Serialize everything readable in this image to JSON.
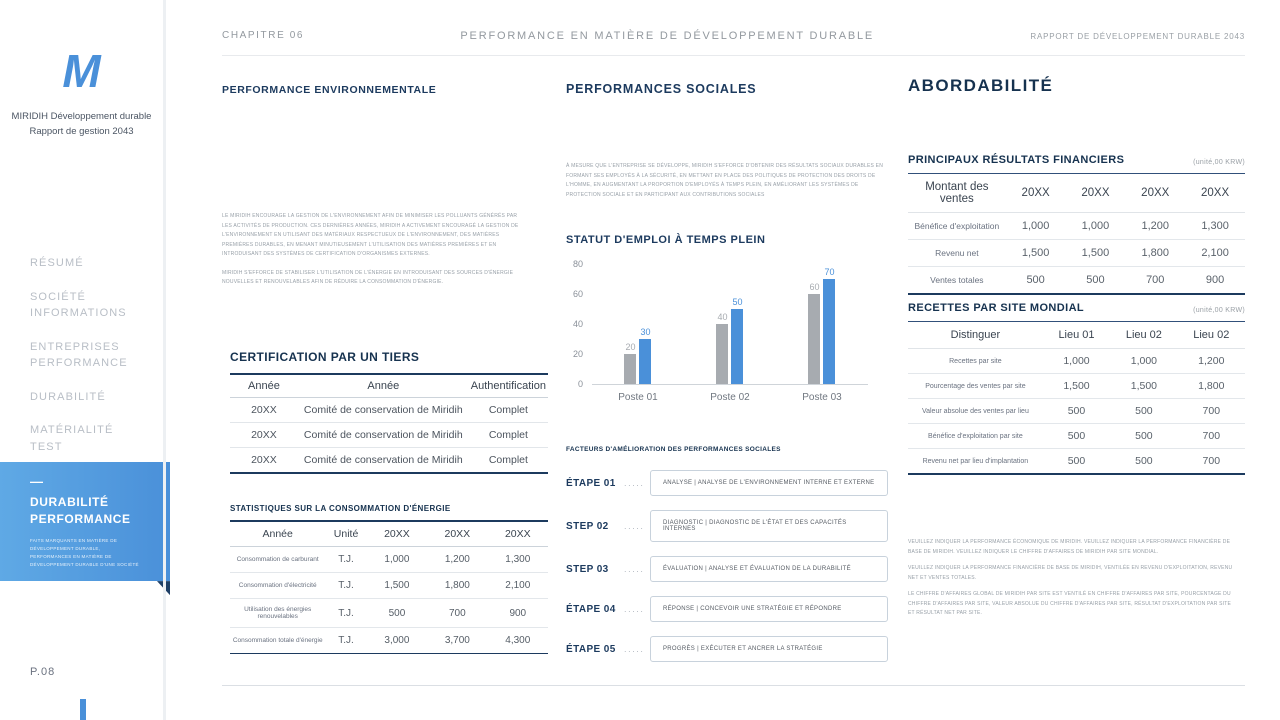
{
  "colors": {
    "accent": "#4a90d9",
    "navy": "#1c3a5e",
    "gray_bar": "#a7abb0"
  },
  "sidebar": {
    "logo_letter": "M",
    "brand_line1": "MIRIDIH Développement durable",
    "brand_line2": "Rapport de gestion 2043",
    "nav_items": [
      "RÉSUMÉ",
      "SOCIÉTÉ INFORMATIONS",
      "ENTREPRISES PERFORMANCE",
      "DURABILITÉ",
      "MATÉRIALITÉ TEST"
    ],
    "active": {
      "dash": "—",
      "label": "DURABILITÉ PERFORMANCE",
      "subtext": "FAITS MARQUANTS EN MATIÈRE DE DÉVELOPPEMENT DURABLE, PERFORMANCES EN MATIÈRE DE DÉVELOPPEMENT DURABLE D'UNE SOCIÉTÉ"
    },
    "page_number": "P.08"
  },
  "header": {
    "chapter": "CHAPITRE 06",
    "title": "PERFORMANCE EN MATIÈRE DE DÉVELOPPEMENT DURABLE",
    "report": "RAPPORT DE DÉVELOPPEMENT DURABLE 2043"
  },
  "environment": {
    "heading": "PERFORMANCE ENVIRONNEMENTALE",
    "paragraphs": [
      "LE MIRIDIH ENCOURAGE LA GESTION DE L'ENVIRONNEMENT AFIN DE MINIMISER LES POLLUANTS GÉNÉRÉS PAR LES ACTIVITÉS DE PRODUCTION. CES DERNIÈRES ANNÉES, MIRIDIH A ACTIVEMENT ENCOURAGÉ LA GESTION DE L'ENVIRONNEMENT EN UTILISANT DES MATÉRIAUX RESPECTUEUX DE L'ENVIRONNEMENT, DES MATIÈRES PREMIÈRES DURABLES, EN MENANT MINUTIEUSEMENT L'UTILISATION DES MATIÈRES PREMIÈRES ET EN INTRODUISANT DES SYSTÈMES DE CERTIFICATION D'ORGANISMES EXTERNES.",
      "MIRIDIH S'EFFORCE DE STABILISER L'UTILISATION DE L'ÉNERGIE EN INTRODUISANT DES SOURCES D'ÉNERGIE NOUVELLES ET RENOUVELABLES AFIN DE RÉDUIRE LA CONSOMMATION D'ÉNERGIE."
    ],
    "certification": {
      "heading": "CERTIFICATION PAR UN TIERS",
      "headers": [
        "Année",
        "Année",
        "Authentification"
      ],
      "rows": [
        [
          "20XX",
          "Comité de conservation de Miridih",
          "Complet"
        ],
        [
          "20XX",
          "Comité de conservation de Miridih",
          "Complet"
        ],
        [
          "20XX",
          "Comité de conservation de Miridih",
          "Complet"
        ]
      ]
    },
    "energy": {
      "heading": "STATISTIQUES SUR LA CONSOMMATION D'ÉNERGIE",
      "headers": [
        "Année",
        "Unité",
        "20XX",
        "20XX",
        "20XX"
      ],
      "rows": [
        [
          "Consommation de carburant",
          "T.J.",
          "1,000",
          "1,200",
          "1,300"
        ],
        [
          "Consommation d'électricité",
          "T.J.",
          "1,500",
          "1,800",
          "2,100"
        ],
        [
          "Utilisation des énergies renouvelables",
          "T.J.",
          "500",
          "700",
          "900"
        ],
        [
          "Consommation totale d'énergie",
          "T.J.",
          "3,000",
          "3,700",
          "4,300"
        ]
      ]
    }
  },
  "social": {
    "heading": "PERFORMANCES SOCIALES",
    "paragraph": "À MESURE QUE L'ENTREPRISE SE DÉVELOPPE, MIRIDIH S'EFFORCE D'OBTENIR DES RÉSULTATS SOCIAUX DURABLES EN FORMANT SES EMPLOYÉS À LA SÉCURITÉ, EN METTANT EN PLACE DES POLITIQUES DE PROTECTION DES DROITS DE L'HOMME, EN AUGMENTANT LA PROPORTION D'EMPLOYÉS À TEMPS PLEIN, EN AMÉLIORANT LES SYSTÈMES DE PROTECTION SOCIALE ET EN PARTICIPANT AUX CONTRIBUTIONS SOCIALES",
    "chart_heading": "STATUT D'EMPLOI À TEMPS PLEIN",
    "factors_heading": "FACTEURS D'AMÉLIORATION DES PERFORMANCES SOCIALES",
    "steps": [
      {
        "label": "ÉTAPE 01",
        "dots": ".....",
        "text": "ANALYSE | ANALYSE DE L'ENVIRONNEMENT INTERNE ET EXTERNE"
      },
      {
        "label": "STEP 02",
        "dots": ".....",
        "text": "DIAGNOSTIC | DIAGNOSTIC DE L'ÉTAT ET DES CAPACITÉS INTERNES"
      },
      {
        "label": "STEP 03",
        "dots": ".....",
        "text": "ÉVALUATION | ANALYSE ET ÉVALUATION DE LA DURABILITÉ"
      },
      {
        "label": "ÉTAPE 04",
        "dots": ".....",
        "text": "RÉPONSE | CONCEVOIR UNE STRATÉGIE ET RÉPONDRE"
      },
      {
        "label": "ÉTAPE 05",
        "dots": ".....",
        "text": "PROGRÈS | EXÉCUTER ET ANCRER LA STRATÉGIE"
      }
    ]
  },
  "chart_data": {
    "type": "bar",
    "title": "STATUT D'EMPLOI À TEMPS PLEIN",
    "categories": [
      "Poste 01",
      "Poste 02",
      "Poste 03"
    ],
    "series": [
      {
        "name": "serie-grise",
        "color": "#a7abb0",
        "values": [
          20,
          40,
          60
        ]
      },
      {
        "name": "serie-bleue",
        "color": "#4a90d9",
        "values": [
          30,
          50,
          70
        ]
      }
    ],
    "ylim": [
      0,
      80
    ],
    "yticks": [
      0,
      20,
      40,
      60,
      80
    ],
    "grid": false,
    "value_labels": true,
    "legend_position": "none"
  },
  "affordability": {
    "heading": "ABORDABILITÉ",
    "financial": {
      "title": "PRINCIPAUX RÉSULTATS FINANCIERS",
      "unit": "(unité,00 KRW)",
      "header_row": [
        "Montant des ventes",
        "20XX",
        "20XX",
        "20XX",
        "20XX"
      ],
      "rows": [
        [
          "Bénéfice d'exploitation",
          "1,000",
          "1,000",
          "1,200",
          "1,300"
        ],
        [
          "Revenu net",
          "1,500",
          "1,500",
          "1,800",
          "2,100"
        ],
        [
          "Ventes totales",
          "500",
          "500",
          "700",
          "900"
        ]
      ]
    },
    "by_site": {
      "title": "RECETTES PAR SITE MONDIAL",
      "unit": "(unité,00 KRW)",
      "headers": [
        "Distinguer",
        "Lieu 01",
        "Lieu 02",
        "Lieu 02"
      ],
      "rows": [
        [
          "Recettes par site",
          "1,000",
          "1,000",
          "1,200"
        ],
        [
          "Pourcentage des ventes par site",
          "1,500",
          "1,500",
          "1,800"
        ],
        [
          "Valeur absolue des ventes par lieu",
          "500",
          "500",
          "700"
        ],
        [
          "Bénéfice d'exploitation par site",
          "500",
          "500",
          "700"
        ],
        [
          "Revenu net par lieu d'implantation",
          "500",
          "500",
          "700"
        ]
      ]
    },
    "footnotes": [
      "VEUILLEZ INDIQUER LA PERFORMANCE ÉCONOMIQUE DE MIRIDIH. VEUILLEZ INDIQUER LA PERFORMANCE FINANCIÈRE DE BASE DE MIRIDIH. VEUILLEZ INDIQUER LE CHIFFRE D'AFFAIRES DE MIRIDIH PAR SITE MONDIAL.",
      "VEUILLEZ INDIQUER LA PERFORMANCE FINANCIÈRE DE BASE DE MIRIDIH, VENTILÉE EN REVENU D'EXPLOITATION, REVENU NET ET VENTES TOTALES.",
      "LE CHIFFRE D'AFFAIRES GLOBAL DE MIRIDIH PAR SITE EST VENTILÉ EN CHIFFRE D'AFFAIRES PAR SITE, POURCENTAGE DU CHIFFRE D'AFFAIRES PAR SITE, VALEUR ABSOLUE DU CHIFFRE D'AFFAIRES PAR SITE, RÉSULTAT D'EXPLOITATION PAR SITE ET RÉSULTAT NET PAR SITE."
    ]
  }
}
